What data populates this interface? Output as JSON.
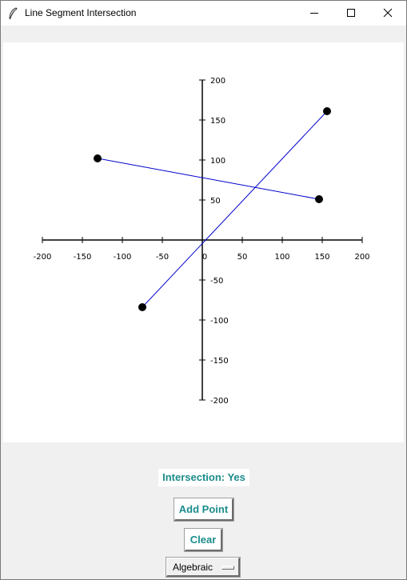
{
  "window": {
    "title": "Line Segment Intersection",
    "icon": "feather-icon",
    "controls": [
      "minimize-icon",
      "maximize-icon",
      "close-icon"
    ]
  },
  "plot": {
    "x_ticks": [
      -200,
      -150,
      -100,
      -50,
      0,
      50,
      100,
      150,
      200
    ],
    "y_ticks": [
      200,
      150,
      100,
      50,
      -50,
      -100,
      -150,
      -200
    ],
    "xlim": [
      -200,
      200
    ],
    "ylim": [
      -200,
      200
    ],
    "axis_color": "#000000",
    "segment_color": "#0000cc",
    "point_color": "#000000",
    "segments": [
      {
        "p1": [
          -131,
          102
        ],
        "p2": [
          146,
          51
        ]
      },
      {
        "p1": [
          -75,
          -84
        ],
        "p2": [
          156,
          161
        ]
      }
    ]
  },
  "status": {
    "text": "Intersection: Yes"
  },
  "buttons": {
    "add_point": "Add Point",
    "clear": "Clear"
  },
  "mode_select": {
    "value": "Algebraic"
  },
  "colors": {
    "accent": "#1c8c8c",
    "panel": "#f0f0f0"
  }
}
